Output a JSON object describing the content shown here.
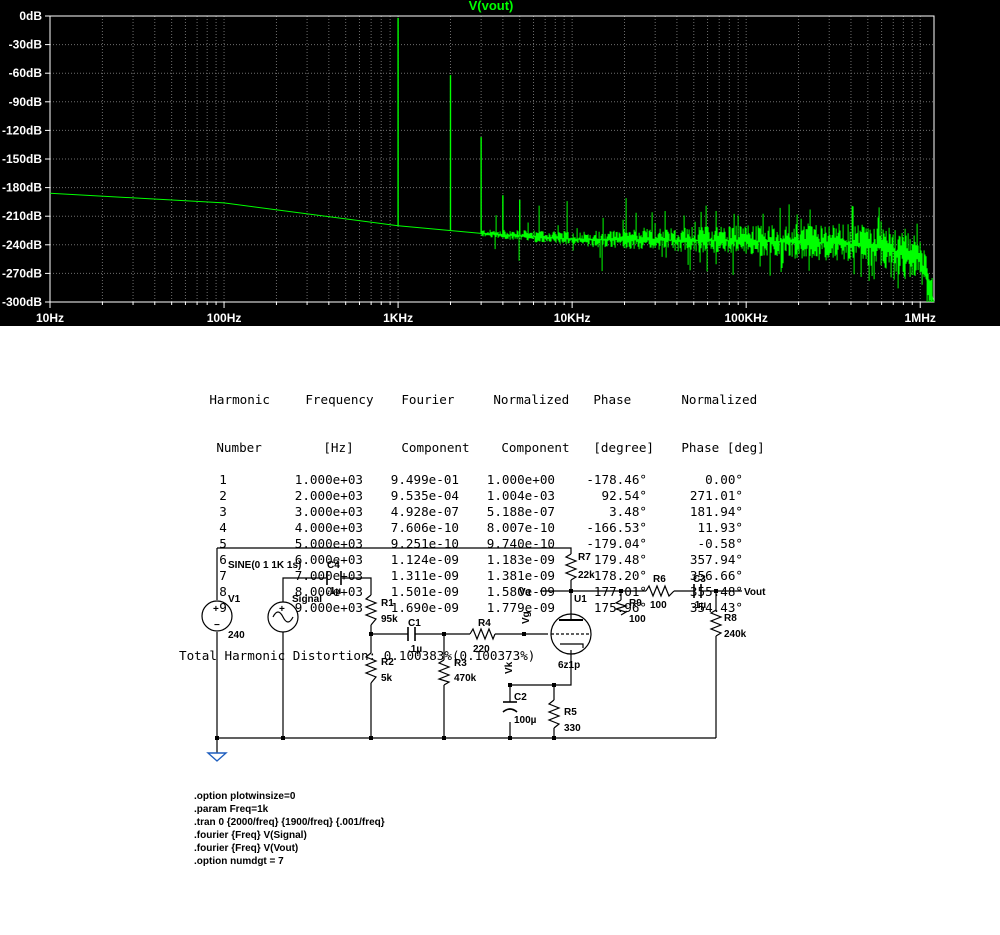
{
  "chart_data": {
    "type": "line",
    "title": "V(vout)",
    "x_scale": "log",
    "xlim": [
      10,
      1200000
    ],
    "ylim": [
      -300,
      0
    ],
    "grid": true,
    "y_ticks": [
      "0dB",
      "-30dB",
      "-60dB",
      "-90dB",
      "-120dB",
      "-150dB",
      "-180dB",
      "-210dB",
      "-240dB",
      "-270dB",
      "-300dB"
    ],
    "y_tick_values": [
      0,
      -30,
      -60,
      -90,
      -120,
      -150,
      -180,
      -210,
      -240,
      -270,
      -300
    ],
    "x_ticks": [
      "10Hz",
      "100Hz",
      "1KHz",
      "10KHz",
      "100KHz",
      "1MHz"
    ],
    "x_tick_values": [
      10,
      100,
      1000,
      10000,
      100000,
      1000000
    ],
    "noise_floor": {
      "x": [
        10,
        100,
        1000,
        3000,
        10000,
        100000,
        300000,
        600000,
        1000000,
        1200000
      ],
      "y": [
        -186,
        -196,
        -220,
        -228,
        -234,
        -236,
        -238,
        -243,
        -255,
        -300
      ]
    },
    "peaks": [
      {
        "x": 1000,
        "y": -2
      },
      {
        "x": 2000,
        "y": -62
      },
      {
        "x": 3000,
        "y": -127
      },
      {
        "x": 4000,
        "y": -188
      },
      {
        "x": 5000,
        "y": -193
      }
    ],
    "colors": {
      "background": "#000000",
      "grid": "#6e6e6e",
      "trace": "#00ff00",
      "text": "#ffffff"
    }
  },
  "fourier": {
    "headers": [
      [
        "Harmonic",
        "Frequency",
        "Fourier",
        "Normalized",
        "Phase",
        "Normalized"
      ],
      [
        "Number",
        "[Hz]",
        "Component",
        "Component",
        "[degree]",
        "Phase [deg]"
      ]
    ],
    "rows": [
      [
        "1",
        "1.000e+03",
        "9.499e-01",
        "1.000e+00",
        "-178.46°",
        "0.00°"
      ],
      [
        "2",
        "2.000e+03",
        "9.535e-04",
        "1.004e-03",
        "92.54°",
        "271.01°"
      ],
      [
        "3",
        "3.000e+03",
        "4.928e-07",
        "5.188e-07",
        "3.48°",
        "181.94°"
      ],
      [
        "4",
        "4.000e+03",
        "7.606e-10",
        "8.007e-10",
        "-166.53°",
        "11.93°"
      ],
      [
        "5",
        "5.000e+03",
        "9.251e-10",
        "9.740e-10",
        "-179.04°",
        "-0.58°"
      ],
      [
        "6",
        "6.000e+03",
        "1.124e-09",
        "1.183e-09",
        "179.48°",
        "357.94°"
      ],
      [
        "7",
        "7.000e+03",
        "1.311e-09",
        "1.381e-09",
        "178.20°",
        "356.66°"
      ],
      [
        "8",
        "8.000e+03",
        "1.501e-09",
        "1.580e-09",
        "177.01°",
        "355.48°"
      ],
      [
        "9",
        "9.000e+03",
        "1.690e-09",
        "1.779e-09",
        "175.96°",
        "354.43°"
      ]
    ],
    "thd": "Total Harmonic Distortion: 0.100383%(0.100373%)"
  },
  "schematic": {
    "source_spec": "SINE(0 1 1K 1s)",
    "v1_name": "V1",
    "v1_value": "240",
    "signal_label": "Signal",
    "c4_name": "C4",
    "c4_value": ".1µ",
    "r1_name": "R1",
    "r1_value": "95k",
    "r2_name": "R2",
    "r2_value": "5k",
    "c1_name": "C1",
    "c1_value": ".1µ",
    "r3_name": "R3",
    "r3_value": "470k",
    "r4_name": "R4",
    "r4_value": "220",
    "vg_label": "Vg",
    "va_label": "Va",
    "vk_label": "Vk",
    "r7_name": "R7",
    "r7_value": "22k",
    "u1_name": "U1",
    "u1_value": "6z1p",
    "r9_name": "R9",
    "r9_value": "100",
    "r6_name": "R6",
    "r6_value": "100",
    "c3_name": "C3",
    "c3_value": ".1µ",
    "vout_label": "Vout",
    "r8_name": "R8",
    "r8_value": "240k",
    "c2_name": "C2",
    "c2_value": "100µ",
    "r5_name": "R5",
    "r5_value": "330"
  },
  "directives": [
    ".option plotwinsize=0",
    ".param Freq=1k",
    ".tran 0 {2000/freq} {1900/freq} {.001/freq}",
    ".fourier {Freq} V(Signal)",
    ".fourier {Freq} V(Vout)",
    ".option numdgt = 7"
  ]
}
